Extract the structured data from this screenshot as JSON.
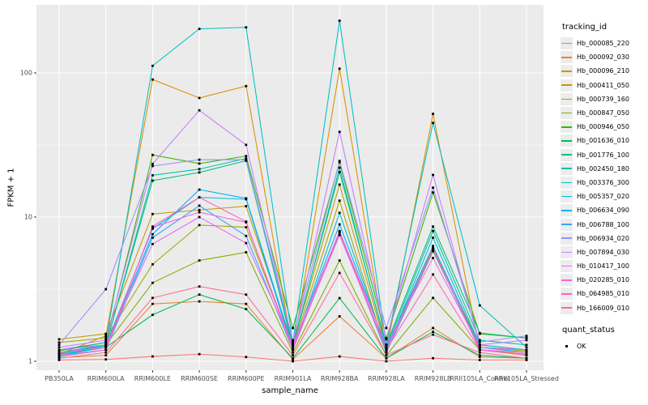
{
  "figure": {
    "background": "#FFFFFF",
    "panel_bg": "#EBEBEB",
    "grid_color": "#FFFFFF",
    "tick_mark_color": "#333333",
    "tick_label_color": "#4D4D4D",
    "axis_title_color": "#000000"
  },
  "chart_data": {
    "type": "line",
    "title": "",
    "xlabel": "sample_name",
    "ylabel": "FPKM + 1",
    "y_scale": "log10",
    "ylim": [
      0.87,
      296
    ],
    "y_ticks": [
      1,
      10,
      100
    ],
    "y_minor_ticks": [
      3.162,
      31.62,
      316.2
    ],
    "grid": true,
    "legend_position": "right",
    "legend_title": "tracking_id",
    "point_color": "#000000",
    "point_shape": "small-black-square",
    "categories": [
      "PB350LA",
      "RRIM600LA",
      "RRIM600LE",
      "RRIM600SE",
      "RRIM600PE",
      "RRIM901LA",
      "RRIM928BA",
      "RRIM928LA",
      "RRIM928LB",
      "RRII105LA_Control",
      "RRII105LA_Stressed"
    ],
    "series": [
      {
        "name": "Hb_000085_220",
        "color": "#F8766D",
        "values": [
          1.02,
          1.03,
          1.08,
          1.12,
          1.07,
          1.0,
          1.08,
          1.0,
          1.05,
          1.02,
          1.02
        ]
      },
      {
        "name": "Hb_000092_030",
        "color": "#EA8331",
        "values": [
          1.06,
          1.1,
          2.5,
          2.6,
          2.5,
          1.03,
          2.05,
          1.05,
          1.7,
          1.07,
          1.05
        ]
      },
      {
        "name": "Hb_000096_210",
        "color": "#D89000",
        "values": [
          1.12,
          1.5,
          90,
          67,
          81,
          1.2,
          107,
          1.18,
          52,
          1.2,
          1.12
        ]
      },
      {
        "name": "Hb_000411_050",
        "color": "#C09B00",
        "values": [
          1.42,
          1.55,
          10.5,
          11.2,
          11.9,
          1.3,
          16.8,
          1.22,
          6.1,
          1.3,
          1.2
        ]
      },
      {
        "name": "Hb_000739_160",
        "color": "#A3A500",
        "values": [
          1.35,
          1.45,
          4.7,
          8.8,
          8.5,
          1.25,
          13.0,
          1.15,
          5.8,
          1.25,
          1.18
        ]
      },
      {
        "name": "Hb_000847_050",
        "color": "#7CAE00",
        "values": [
          1.2,
          1.3,
          3.5,
          5.0,
          5.7,
          1.15,
          5.0,
          1.1,
          2.75,
          1.2,
          1.1
        ]
      },
      {
        "name": "Hb_000946_050",
        "color": "#39B600",
        "values": [
          1.18,
          1.35,
          27,
          23.5,
          26.5,
          1.7,
          24,
          1.45,
          14.8,
          1.55,
          1.45
        ]
      },
      {
        "name": "Hb_001636_010",
        "color": "#00BB4E",
        "values": [
          1.1,
          1.25,
          2.1,
          2.9,
          2.3,
          1.05,
          2.74,
          1.05,
          1.6,
          1.1,
          1.05
        ]
      },
      {
        "name": "Hb_001776_100",
        "color": "#00BF7D",
        "values": [
          1.12,
          1.3,
          17.9,
          20.4,
          24.6,
          1.3,
          20.5,
          1.3,
          8.6,
          1.57,
          1.45
        ]
      },
      {
        "name": "Hb_002450_180",
        "color": "#00C1A3",
        "values": [
          1.1,
          1.28,
          19.5,
          21.5,
          25.5,
          1.25,
          22,
          1.25,
          8.0,
          1.4,
          1.3
        ]
      },
      {
        "name": "Hb_003376_300",
        "color": "#00BFC4",
        "values": [
          1.2,
          1.35,
          112,
          202,
          207,
          1.35,
          230,
          1.3,
          45,
          2.44,
          1.25
        ]
      },
      {
        "name": "Hb_005357_020",
        "color": "#00BADE",
        "values": [
          1.15,
          1.3,
          8.3,
          13.7,
          13.3,
          1.2,
          10.7,
          1.2,
          7.2,
          1.3,
          1.2
        ]
      },
      {
        "name": "Hb_006634_090",
        "color": "#00B0F6",
        "values": [
          1.1,
          1.25,
          7.6,
          15.5,
          13.5,
          1.25,
          8.9,
          1.25,
          6.3,
          1.25,
          1.15
        ]
      },
      {
        "name": "Hb_006788_100",
        "color": "#35A2FF",
        "values": [
          1.08,
          1.2,
          7.2,
          12.0,
          7.4,
          1.2,
          7.8,
          1.15,
          5.9,
          1.2,
          1.1
        ]
      },
      {
        "name": "Hb_006934_020",
        "color": "#9590FF",
        "values": [
          1.3,
          3.16,
          22.6,
          25,
          25,
          1.4,
          24.5,
          1.7,
          16,
          1.36,
          1.5
        ]
      },
      {
        "name": "Hb_007894_030",
        "color": "#C77CFF",
        "values": [
          1.25,
          1.4,
          23.4,
          55,
          31.7,
          1.35,
          39,
          1.42,
          19.6,
          1.3,
          1.4
        ]
      },
      {
        "name": "Hb_010417_100",
        "color": "#E76BF3",
        "values": [
          1.2,
          1.3,
          6.5,
          10.0,
          6.6,
          1.3,
          7.9,
          1.3,
          5.2,
          1.25,
          1.2
        ]
      },
      {
        "name": "Hb_020285_010",
        "color": "#FA62DB",
        "values": [
          1.15,
          1.25,
          8.5,
          10.8,
          9.2,
          1.25,
          7.5,
          1.2,
          6.0,
          1.2,
          1.15
        ]
      },
      {
        "name": "Hb_064985_010",
        "color": "#FF62BC",
        "values": [
          1.1,
          1.2,
          8.6,
          13.7,
          9.3,
          1.2,
          8.0,
          1.2,
          4.0,
          1.2,
          1.1
        ]
      },
      {
        "name": "Hb_166009_010",
        "color": "#FF6A98",
        "values": [
          1.05,
          1.15,
          2.75,
          3.3,
          2.9,
          1.1,
          4.1,
          1.1,
          1.53,
          1.15,
          1.05
        ]
      }
    ],
    "shape_legend": {
      "title": "quant_status",
      "items": [
        {
          "label": "OK",
          "shape": "black-square"
        }
      ]
    }
  }
}
